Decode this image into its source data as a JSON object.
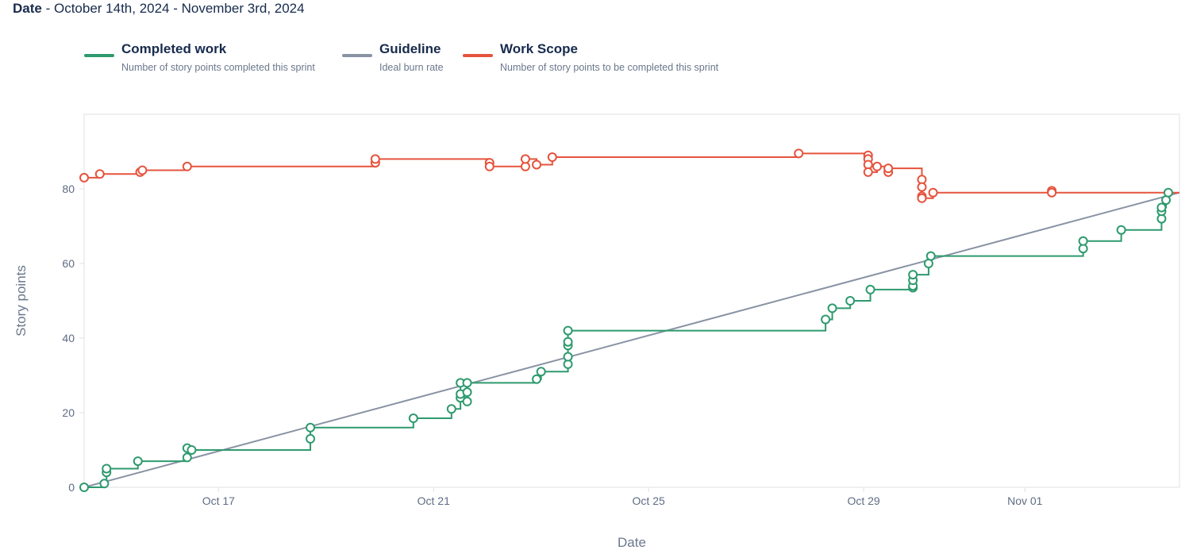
{
  "header": {
    "date_label": "Date",
    "date_range": " - October 14th, 2024 - November 3rd, 2024"
  },
  "legend": [
    {
      "title": "Completed work",
      "desc": "Number of story points completed this sprint",
      "color": "#2e9a6e"
    },
    {
      "title": "Guideline",
      "desc": "Ideal burn rate",
      "color": "#8993a4"
    },
    {
      "title": "Work Scope",
      "desc": "Number of story points to be completed this sprint",
      "color": "#e5533d"
    }
  ],
  "chart_data": {
    "type": "line",
    "xlabel": "Date",
    "ylabel": "Story points",
    "x_range": [
      "2024-10-14 00:00",
      "2024-11-03 09:00"
    ],
    "ylim": [
      0,
      100
    ],
    "y_ticks": [
      0,
      20,
      40,
      60,
      80
    ],
    "x_ticks": [
      {
        "label": "Oct 17",
        "date": "2024-10-16 12:00"
      },
      {
        "label": "Oct 21",
        "date": "2024-10-20 12:00"
      },
      {
        "label": "Oct 25",
        "date": "2024-10-24 12:00"
      },
      {
        "label": "Oct 29",
        "date": "2024-10-28 12:00"
      },
      {
        "label": "Nov 01",
        "date": "2024-10-31 12:00"
      }
    ],
    "grid": false,
    "series": [
      {
        "name": "Work Scope",
        "color": "#e5533d",
        "points": [
          [
            "2024-10-14 00:00",
            83
          ],
          [
            "2024-10-14 07:00",
            84
          ],
          [
            "2024-10-15 01:00",
            84.5
          ],
          [
            "2024-10-15 02:00",
            85
          ],
          [
            "2024-10-15 22:00",
            86
          ],
          [
            "2024-10-19 10:00",
            87
          ],
          [
            "2024-10-19 10:00",
            88
          ],
          [
            "2024-10-21 13:00",
            87
          ],
          [
            "2024-10-21 13:00",
            86
          ],
          [
            "2024-10-22 05:00",
            86
          ],
          [
            "2024-10-22 05:00",
            88
          ],
          [
            "2024-10-22 10:00",
            86.5
          ],
          [
            "2024-10-22 17:00",
            88.5
          ],
          [
            "2024-10-27 07:00",
            89.5
          ],
          [
            "2024-10-28 14:00",
            89
          ],
          [
            "2024-10-28 14:00",
            88
          ],
          [
            "2024-10-28 14:00",
            86.5
          ],
          [
            "2024-10-28 14:00",
            84.5
          ],
          [
            "2024-10-28 18:00",
            86
          ],
          [
            "2024-10-28 23:00",
            84.5
          ],
          [
            "2024-10-28 23:00",
            85.5
          ],
          [
            "2024-10-29 14:00",
            82.5
          ],
          [
            "2024-10-29 14:00",
            80.5
          ],
          [
            "2024-10-29 14:00",
            78
          ],
          [
            "2024-10-29 14:00",
            77.5
          ],
          [
            "2024-10-29 19:00",
            79
          ],
          [
            "2024-11-01 00:00",
            79.5
          ],
          [
            "2024-11-01 00:00",
            79
          ]
        ]
      },
      {
        "name": "Guideline",
        "color": "#8993a4",
        "points": [
          [
            "2024-10-14 00:00",
            0
          ],
          [
            "2024-11-03 09:00",
            79
          ]
        ]
      },
      {
        "name": "Completed work",
        "color": "#2e9a6e",
        "points": [
          [
            "2024-10-14 00:00",
            0
          ],
          [
            "2024-10-14 09:00",
            1
          ],
          [
            "2024-10-14 10:00",
            4
          ],
          [
            "2024-10-14 10:00",
            5
          ],
          [
            "2024-10-15 00:00",
            7
          ],
          [
            "2024-10-15 22:00",
            8
          ],
          [
            "2024-10-15 22:00",
            10.5
          ],
          [
            "2024-10-16 00:00",
            10
          ],
          [
            "2024-10-18 05:00",
            13
          ],
          [
            "2024-10-18 05:00",
            16
          ],
          [
            "2024-10-20 03:00",
            18.5
          ],
          [
            "2024-10-20 20:00",
            21
          ],
          [
            "2024-10-21 00:00",
            24
          ],
          [
            "2024-10-21 00:00",
            25
          ],
          [
            "2024-10-21 00:00",
            28
          ],
          [
            "2024-10-21 03:00",
            23
          ],
          [
            "2024-10-21 03:00",
            25.5
          ],
          [
            "2024-10-21 03:00",
            28
          ],
          [
            "2024-10-22 10:00",
            29
          ],
          [
            "2024-10-22 12:00",
            31
          ],
          [
            "2024-10-23 00:00",
            33
          ],
          [
            "2024-10-23 00:00",
            35
          ],
          [
            "2024-10-23 00:00",
            38
          ],
          [
            "2024-10-23 00:00",
            39
          ],
          [
            "2024-10-23 00:00",
            42
          ],
          [
            "2024-10-27 19:00",
            45
          ],
          [
            "2024-10-27 22:00",
            48
          ],
          [
            "2024-10-28 06:00",
            50
          ],
          [
            "2024-10-28 15:00",
            53
          ],
          [
            "2024-10-29 10:00",
            53.5
          ],
          [
            "2024-10-29 10:00",
            54
          ],
          [
            "2024-10-29 10:00",
            55.5
          ],
          [
            "2024-10-29 10:00",
            57
          ],
          [
            "2024-10-29 17:00",
            60
          ],
          [
            "2024-10-29 18:00",
            62
          ],
          [
            "2024-11-01 14:00",
            64
          ],
          [
            "2024-11-01 14:00",
            66
          ],
          [
            "2024-11-02 07:00",
            69
          ],
          [
            "2024-11-03 01:00",
            72
          ],
          [
            "2024-11-03 01:00",
            74
          ],
          [
            "2024-11-03 01:00",
            75
          ],
          [
            "2024-11-03 03:00",
            77
          ],
          [
            "2024-11-03 04:00",
            79
          ]
        ]
      }
    ]
  }
}
